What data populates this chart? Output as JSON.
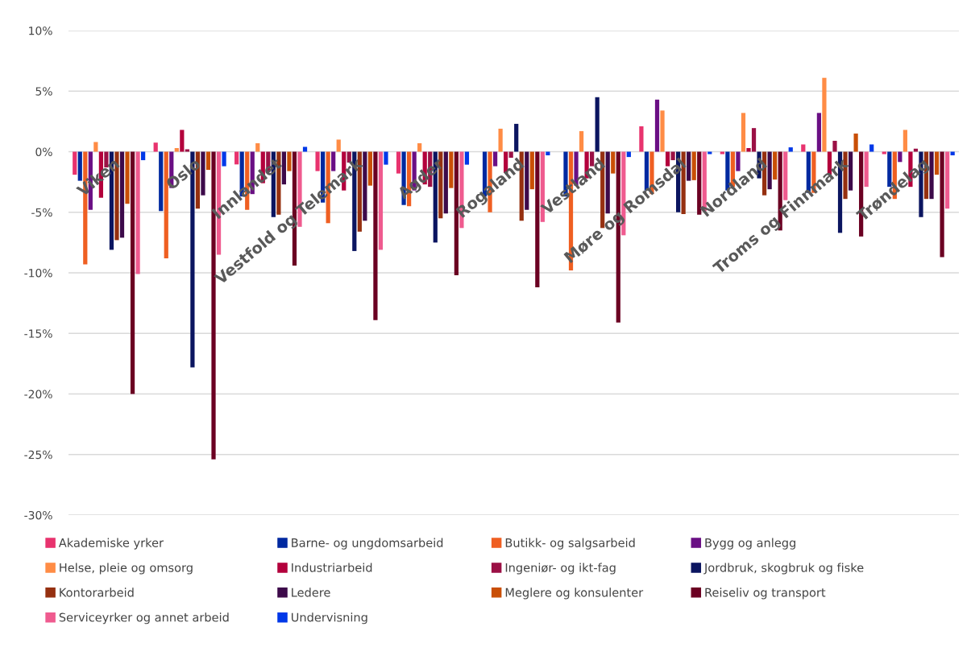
{
  "chart_data": {
    "type": "bar",
    "categories": [
      "Viken",
      "Oslo",
      "Innlandet",
      "Vestfold og Telemark",
      "Agder",
      "Rogaland",
      "Vestland",
      "Møre og Romsdal",
      "Nordland",
      "Troms og Finnmark",
      "Trøndelag"
    ],
    "series": [
      {
        "name": "Akademiske yrker",
        "color": "#e8336e",
        "values": [
          -1.9,
          0.75,
          -1.05,
          -1.6,
          -1.8,
          0,
          0,
          2.1,
          -0.2,
          0.6,
          -0.2
        ]
      },
      {
        "name": "Barne- og ungdomsarbeid",
        "color": "#0029a0",
        "values": [
          -2.4,
          -4.9,
          -3.7,
          -4.2,
          -4.4,
          -3.7,
          -3.7,
          -3.2,
          -3.2,
          -3.4,
          -2.9
        ]
      },
      {
        "name": "Butikk- og salgsarbeid",
        "color": "#ef5f22",
        "values": [
          -9.3,
          -8.8,
          -4.8,
          -5.9,
          -4.5,
          -5.0,
          -9.8,
          -3.5,
          -2.9,
          -3.4,
          -3.9
        ]
      },
      {
        "name": "Bygg og anlegg",
        "color": "#6a0f84",
        "values": [
          -4.8,
          -3.0,
          -3.5,
          -1.6,
          -3.2,
          -1.2,
          -2.8,
          4.3,
          -1.6,
          3.2,
          -0.85
        ]
      },
      {
        "name": "Helse, pleie og omsorg",
        "color": "#ff8c45",
        "values": [
          0.8,
          0.3,
          0.7,
          1.0,
          0.7,
          1.9,
          1.7,
          3.4,
          3.2,
          6.1,
          1.8
        ]
      },
      {
        "name": "Industriarbeid",
        "color": "#b3003c",
        "values": [
          -3.8,
          1.8,
          -2.6,
          -3.2,
          -2.7,
          -1.75,
          -2.2,
          -1.2,
          0.3,
          -1.9,
          -2.9
        ]
      },
      {
        "name": "Ingeniør- og ikt-fag",
        "color": "#9b1045",
        "values": [
          -1.3,
          0.2,
          -1.7,
          -0.9,
          -2.9,
          -0.5,
          -1.2,
          -0.7,
          1.95,
          0.9,
          0.25
        ]
      },
      {
        "name": "Jordbruk, skogbruk og fiske",
        "color": "#0b1560",
        "values": [
          -8.1,
          -17.8,
          -5.4,
          -8.2,
          -7.5,
          2.3,
          4.5,
          -5.0,
          -2.2,
          -6.7,
          -5.4
        ]
      },
      {
        "name": "Kontorarbeid",
        "color": "#953010",
        "values": [
          -7.3,
          -4.7,
          -5.2,
          -6.6,
          -5.5,
          -5.7,
          -6.3,
          -5.15,
          -3.6,
          -3.9,
          -3.9
        ]
      },
      {
        "name": "Ledere",
        "color": "#3d0a4a",
        "values": [
          -7.1,
          -3.6,
          -2.7,
          -5.7,
          -5.1,
          -4.8,
          -5.1,
          -2.4,
          -3.1,
          -3.2,
          -3.9
        ]
      },
      {
        "name": "Meglere og konsulenter",
        "color": "#c94f06",
        "values": [
          -4.3,
          -1.5,
          -1.6,
          -2.8,
          -3.0,
          -3.1,
          -1.8,
          -2.35,
          -2.3,
          1.5,
          -1.9
        ]
      },
      {
        "name": "Reiseliv og transport",
        "color": "#6b0022",
        "values": [
          -20.0,
          -25.4,
          -9.4,
          -13.9,
          -10.2,
          -11.2,
          -14.1,
          -5.2,
          -6.5,
          -7.0,
          -8.7
        ]
      },
      {
        "name": "Serviceyrker og annet arbeid",
        "color": "#ef5b8f",
        "values": [
          -10.1,
          -8.5,
          -6.2,
          -8.1,
          -6.3,
          -5.8,
          -6.9,
          -4.9,
          -4.0,
          -2.9,
          -4.7
        ]
      },
      {
        "name": "Undervisning",
        "color": "#0038e8",
        "values": [
          -0.7,
          -1.2,
          0.4,
          -1.07,
          -1.07,
          -0.3,
          -0.44,
          -0.2,
          0.36,
          0.6,
          -0.3
        ]
      }
    ],
    "ylim": [
      -30,
      10
    ],
    "yticks": [
      {
        "value": -30,
        "label": "-30%"
      },
      {
        "value": -25,
        "label": "-25%"
      },
      {
        "value": -20,
        "label": "-20%"
      },
      {
        "value": -15,
        "label": "-15%"
      },
      {
        "value": -10,
        "label": "-10%"
      },
      {
        "value": -5,
        "label": "-5%"
      },
      {
        "value": 0,
        "label": "0%"
      },
      {
        "value": 5,
        "label": "5%"
      },
      {
        "value": 10,
        "label": "10%"
      }
    ],
    "grid": "y",
    "legend": "bottom"
  }
}
